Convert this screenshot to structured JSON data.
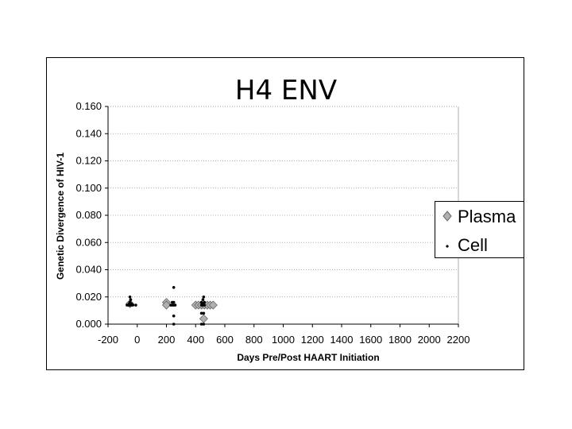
{
  "chart_data": {
    "type": "scatter",
    "title": "H4  ENV",
    "xlabel": "Days   Pre/Post   HAART   Initiation",
    "ylabel": "Genetic   Divergence   of   HIV-1",
    "xlim": [
      -200,
      2200
    ],
    "ylim": [
      0,
      0.16
    ],
    "x_ticks": [
      "-200",
      "0",
      "200",
      "400",
      "600",
      "800",
      "1000",
      "1200",
      "1400",
      "1600",
      "1800",
      "2000",
      "2200"
    ],
    "y_ticks": [
      "0.000",
      "0.020",
      "0.040",
      "0.060",
      "0.080",
      "0.100",
      "0.120",
      "0.140",
      "0.160"
    ],
    "grid": true,
    "legend": "right",
    "series": [
      {
        "name": "Plasma",
        "marker": "diamond",
        "color": "#b0b0b0",
        "points": [
          [
            -50,
            0.015
          ],
          [
            200,
            0.016
          ],
          [
            200,
            0.014
          ],
          [
            400,
            0.014
          ],
          [
            420,
            0.014
          ],
          [
            440,
            0.014
          ],
          [
            460,
            0.014
          ],
          [
            480,
            0.014
          ],
          [
            500,
            0.014
          ],
          [
            520,
            0.014
          ],
          [
            455,
            0.004
          ]
        ]
      },
      {
        "name": "Cell",
        "marker": "dot",
        "color": "#000000",
        "points": [
          [
            -70,
            0.014
          ],
          [
            -60,
            0.014
          ],
          [
            -50,
            0.014
          ],
          [
            -40,
            0.014
          ],
          [
            -30,
            0.014
          ],
          [
            -10,
            0.014
          ],
          [
            -50,
            0.016
          ],
          [
            -45,
            0.018
          ],
          [
            -50,
            0.02
          ],
          [
            -40,
            0.015
          ],
          [
            -55,
            0.015
          ],
          [
            230,
            0.014
          ],
          [
            240,
            0.014
          ],
          [
            250,
            0.014
          ],
          [
            260,
            0.014
          ],
          [
            240,
            0.016
          ],
          [
            250,
            0.016
          ],
          [
            250,
            0.027
          ],
          [
            250,
            0.006
          ],
          [
            250,
            0.0
          ],
          [
            440,
            0.014
          ],
          [
            450,
            0.014
          ],
          [
            460,
            0.014
          ],
          [
            440,
            0.016
          ],
          [
            450,
            0.018
          ],
          [
            455,
            0.02
          ],
          [
            445,
            0.015
          ],
          [
            460,
            0.016
          ],
          [
            440,
            0.008
          ],
          [
            455,
            0.008
          ],
          [
            440,
            0.0
          ],
          [
            455,
            0.0
          ]
        ]
      }
    ]
  }
}
